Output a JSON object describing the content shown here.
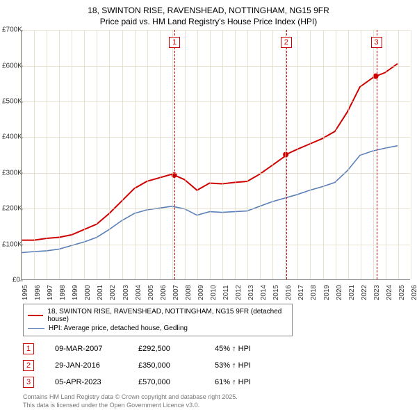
{
  "title": {
    "line1": "18, SWINTON RISE, RAVENSHEAD, NOTTINGHAM, NG15 9FR",
    "line2": "Price paid vs. HM Land Registry's House Price Index (HPI)"
  },
  "chart": {
    "type": "line",
    "background_color": "#ffffff",
    "grid_color": "#d8ceb4",
    "axis_color": "#888888",
    "x": {
      "min": 1995,
      "max": 2026,
      "ticks": [
        1995,
        1996,
        1997,
        1998,
        1999,
        2000,
        2001,
        2002,
        2003,
        2004,
        2005,
        2006,
        2007,
        2008,
        2009,
        2010,
        2011,
        2012,
        2013,
        2014,
        2015,
        2016,
        2017,
        2018,
        2019,
        2020,
        2021,
        2022,
        2023,
        2024,
        2025,
        2026
      ]
    },
    "y": {
      "min": 0,
      "max": 700,
      "ticks": [
        0,
        100,
        200,
        300,
        400,
        500,
        600,
        700
      ],
      "tick_labels": [
        "£0",
        "£100K",
        "£200K",
        "£300K",
        "£400K",
        "£500K",
        "£600K",
        "£700K"
      ]
    },
    "markers": [
      {
        "n": "1",
        "x": 2007.18
      },
      {
        "n": "2",
        "x": 2016.08
      },
      {
        "n": "3",
        "x": 2023.26
      }
    ],
    "series": [
      {
        "name": "18, SWINTON RISE, RAVENSHEAD, NOTTINGHAM, NG15 9FR (detached house)",
        "color": "#d00000",
        "width": 2,
        "points": [
          [
            1995,
            110
          ],
          [
            1996,
            110
          ],
          [
            1997,
            115
          ],
          [
            1998,
            118
          ],
          [
            1999,
            125
          ],
          [
            2000,
            140
          ],
          [
            2001,
            155
          ],
          [
            2002,
            185
          ],
          [
            2003,
            220
          ],
          [
            2004,
            255
          ],
          [
            2005,
            275
          ],
          [
            2006,
            285
          ],
          [
            2007,
            295
          ],
          [
            2007.18,
            292.5
          ],
          [
            2008,
            280
          ],
          [
            2009,
            250
          ],
          [
            2010,
            270
          ],
          [
            2011,
            268
          ],
          [
            2012,
            272
          ],
          [
            2013,
            275
          ],
          [
            2014,
            295
          ],
          [
            2015,
            320
          ],
          [
            2016,
            345
          ],
          [
            2016.08,
            350
          ],
          [
            2017,
            365
          ],
          [
            2018,
            380
          ],
          [
            2019,
            395
          ],
          [
            2020,
            415
          ],
          [
            2021,
            470
          ],
          [
            2022,
            540
          ],
          [
            2023,
            565
          ],
          [
            2023.26,
            570
          ],
          [
            2024,
            580
          ],
          [
            2025,
            605
          ]
        ],
        "sale_dots": [
          [
            2007.18,
            292.5
          ],
          [
            2016.08,
            350
          ],
          [
            2023.26,
            570
          ]
        ]
      },
      {
        "name": "HPI: Average price, detached house, Gedling",
        "color": "#5b7fb8",
        "width": 1.6,
        "points": [
          [
            1995,
            75
          ],
          [
            1996,
            78
          ],
          [
            1997,
            80
          ],
          [
            1998,
            85
          ],
          [
            1999,
            95
          ],
          [
            2000,
            105
          ],
          [
            2001,
            118
          ],
          [
            2002,
            140
          ],
          [
            2003,
            165
          ],
          [
            2004,
            185
          ],
          [
            2005,
            195
          ],
          [
            2006,
            200
          ],
          [
            2007,
            205
          ],
          [
            2008,
            198
          ],
          [
            2009,
            180
          ],
          [
            2010,
            190
          ],
          [
            2011,
            188
          ],
          [
            2012,
            190
          ],
          [
            2013,
            192
          ],
          [
            2014,
            205
          ],
          [
            2015,
            218
          ],
          [
            2016,
            228
          ],
          [
            2017,
            238
          ],
          [
            2018,
            250
          ],
          [
            2019,
            260
          ],
          [
            2020,
            272
          ],
          [
            2021,
            305
          ],
          [
            2022,
            348
          ],
          [
            2023,
            360
          ],
          [
            2024,
            368
          ],
          [
            2025,
            375
          ]
        ]
      }
    ]
  },
  "legend": [
    {
      "color": "#d00000",
      "label": "18, SWINTON RISE, RAVENSHEAD, NOTTINGHAM, NG15 9FR (detached house)"
    },
    {
      "color": "#5b7fb8",
      "label": "HPI: Average price, detached house, Gedling"
    }
  ],
  "sales": [
    {
      "n": "1",
      "date": "09-MAR-2007",
      "price": "£292,500",
      "pct": "45% ↑ HPI"
    },
    {
      "n": "2",
      "date": "29-JAN-2016",
      "price": "£350,000",
      "pct": "53% ↑ HPI"
    },
    {
      "n": "3",
      "date": "05-APR-2023",
      "price": "£570,000",
      "pct": "61% ↑ HPI"
    }
  ],
  "footer": {
    "line1": "Contains HM Land Registry data © Crown copyright and database right 2025.",
    "line2": "This data is licensed under the Open Government Licence v3.0."
  }
}
